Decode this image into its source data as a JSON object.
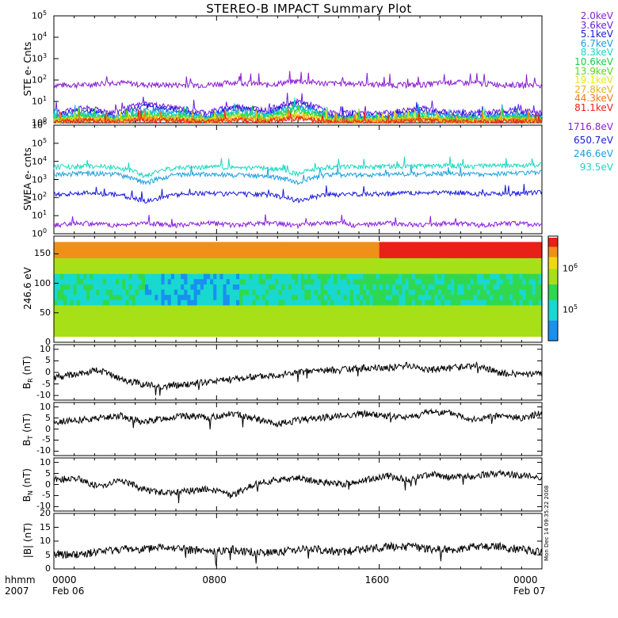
{
  "title": "STEREO-B IMPACT Summary Plot",
  "footer": {
    "corner_top": "hhmm",
    "corner_bottom": "2007",
    "x_ticks": [
      "0000",
      "0800",
      "1600",
      "0000"
    ],
    "x_dates": [
      "Feb 06",
      "",
      "",
      "Feb 07"
    ]
  },
  "timestamp": "Mon Dec 14 09:35:22 2008",
  "colors": {
    "ste": [
      "#8a1fd0",
      "#6a1fe0",
      "#1a1ad8",
      "#1aa0e0",
      "#18d6c8",
      "#18d048",
      "#5ad818",
      "#e8e818",
      "#f0b018",
      "#f07818",
      "#e82018"
    ],
    "swea": [
      "#8a1fe0",
      "#1a1ad8",
      "#1aa0e0",
      "#18d8c0"
    ]
  },
  "chart_data": [
    {
      "type": "line",
      "name": "ste",
      "ylabel": "STE e- Cnts",
      "yscale": "log",
      "ylim": [
        1,
        100000
      ],
      "y_ticks": [
        "10",
        "10",
        "10",
        "10",
        "10",
        "10"
      ],
      "y_tick_exponents": [
        "0",
        "1",
        "2",
        "3",
        "4",
        "5"
      ],
      "series": [
        {
          "name": "2.0keV",
          "values": [
            60,
            60,
            80,
            60,
            60,
            60,
            80,
            60,
            90,
            70,
            70,
            60,
            60,
            80,
            70,
            60,
            60
          ]
        },
        {
          "name": "3.6keV",
          "values": [
            3,
            5,
            3,
            8,
            5,
            3,
            6,
            4,
            10,
            3,
            3,
            3,
            5,
            3,
            3,
            4,
            3
          ]
        },
        {
          "name": "5.1keV",
          "values": [
            2,
            4,
            2,
            6,
            4,
            2,
            5,
            3,
            8,
            2,
            2,
            2,
            4,
            2,
            2,
            3,
            2
          ]
        },
        {
          "name": "6.7keV",
          "values": [
            1.8,
            3,
            1.8,
            4,
            3,
            1.8,
            4,
            2.5,
            6,
            1.8,
            1.8,
            1.8,
            3,
            1.8,
            1.8,
            2.5,
            1.8
          ]
        },
        {
          "name": "8.3keV",
          "values": [
            1.6,
            2.5,
            1.6,
            3,
            2.5,
            1.6,
            3,
            2,
            5,
            1.6,
            1.6,
            1.6,
            2.5,
            1.6,
            1.6,
            2,
            1.6
          ]
        },
        {
          "name": "10.6keV",
          "values": [
            1.5,
            2,
            1.5,
            2.5,
            2,
            1.5,
            2.5,
            1.8,
            4,
            1.5,
            1.5,
            1.5,
            2,
            1.5,
            1.5,
            1.8,
            1.5
          ]
        },
        {
          "name": "13.9keV",
          "values": [
            1.4,
            1.8,
            1.4,
            2,
            1.8,
            1.4,
            2,
            1.6,
            3,
            1.4,
            1.4,
            1.4,
            1.8,
            1.4,
            1.4,
            1.6,
            1.4
          ]
        },
        {
          "name": "19.1keV",
          "values": [
            1.3,
            1.6,
            1.3,
            1.8,
            1.6,
            1.3,
            1.8,
            1.5,
            2.5,
            1.3,
            1.3,
            1.3,
            1.6,
            1.3,
            1.3,
            1.5,
            1.3
          ]
        },
        {
          "name": "27.8keV",
          "values": [
            1.2,
            1.5,
            1.2,
            1.6,
            1.5,
            1.2,
            1.6,
            1.4,
            2,
            1.2,
            1.2,
            1.2,
            1.5,
            1.2,
            1.2,
            1.4,
            1.2
          ]
        },
        {
          "name": "44.3keV",
          "values": [
            1.15,
            1.4,
            1.15,
            1.5,
            1.4,
            1.15,
            1.5,
            1.3,
            1.8,
            1.15,
            1.15,
            1.15,
            1.4,
            1.15,
            1.15,
            1.3,
            1.15
          ]
        },
        {
          "name": "81.1keV",
          "values": [
            1.1,
            1.3,
            1.1,
            1.4,
            1.3,
            1.1,
            1.4,
            1.2,
            1.6,
            1.1,
            1.1,
            1.1,
            1.3,
            1.1,
            1.1,
            1.2,
            1.1
          ]
        }
      ]
    },
    {
      "type": "line",
      "name": "swea",
      "ylabel": "SWEA e- cnts",
      "yscale": "log",
      "ylim": [
        1,
        1000000
      ],
      "y_ticks": [
        "10",
        "10",
        "10",
        "10",
        "10",
        "10",
        "10"
      ],
      "y_tick_exponents": [
        "0",
        "1",
        "2",
        "3",
        "4",
        "5",
        "6"
      ],
      "series": [
        {
          "name": "1716.8eV",
          "values": [
            3,
            4,
            3,
            4,
            3,
            4,
            3,
            4,
            3,
            4,
            3,
            4,
            3,
            4,
            3,
            4,
            3
          ]
        },
        {
          "name": "650.7eV",
          "values": [
            150,
            180,
            150,
            60,
            150,
            180,
            160,
            150,
            70,
            150,
            160,
            170,
            180,
            200,
            160,
            170,
            200
          ]
        },
        {
          "name": "246.6eV",
          "values": [
            2000,
            2200,
            2000,
            600,
            1800,
            2000,
            1800,
            1600,
            700,
            1800,
            1800,
            2000,
            2000,
            2200,
            2000,
            2200,
            2500
          ]
        },
        {
          "name": "93.5eV",
          "values": [
            5000,
            5500,
            5000,
            1500,
            4500,
            5000,
            4500,
            4500,
            2000,
            5000,
            5000,
            5500,
            5500,
            6000,
            5500,
            6000,
            6500
          ]
        }
      ]
    },
    {
      "type": "heatmap",
      "name": "pitch",
      "ylabel": "246.6 eV",
      "ylim": [
        0,
        180
      ],
      "y_ticks": [
        "0",
        "50",
        "100",
        "150"
      ],
      "colorbar_ticks": [
        "10",
        "10"
      ],
      "colorbar_exponents": [
        "5",
        "6"
      ]
    },
    {
      "type": "line",
      "name": "br",
      "ylabel": "B",
      "ylabel_sub": "R",
      "ylabel_unit": " (nT)",
      "ylim": [
        -12,
        12
      ],
      "y_ticks": [
        "10",
        "5",
        "0",
        "-5",
        "-10"
      ],
      "values": [
        -2,
        -1,
        1,
        -3,
        -5,
        -6,
        -5,
        -4,
        -3,
        -2,
        -1,
        0,
        1,
        1,
        2,
        2,
        3,
        1,
        2,
        3,
        0,
        -1,
        -1
      ]
    },
    {
      "type": "line",
      "name": "bt",
      "ylabel": "B",
      "ylabel_sub": "T",
      "ylabel_unit": " (nT)",
      "ylim": [
        -12,
        12
      ],
      "y_ticks": [
        "10",
        "5",
        "0",
        "-5",
        "-10"
      ],
      "values": [
        3,
        4,
        5,
        6,
        3,
        5,
        6,
        5,
        7,
        5,
        2,
        4,
        5,
        6,
        7,
        6,
        5,
        8,
        7,
        4,
        6,
        5,
        7
      ]
    },
    {
      "type": "line",
      "name": "bn",
      "ylabel": "B",
      "ylabel_sub": "N",
      "ylabel_unit": " (nT)",
      "ylim": [
        -12,
        12
      ],
      "y_ticks": [
        "10",
        "5",
        "0",
        "-5",
        "-10"
      ],
      "values": [
        2,
        3,
        -1,
        2,
        -2,
        -4,
        -3,
        -2,
        -5,
        0,
        2,
        3,
        1,
        0,
        2,
        4,
        2,
        5,
        3,
        4,
        5,
        4,
        3
      ]
    },
    {
      "type": "line",
      "name": "bmag",
      "ylabel": "|B| (nT)",
      "ylim": [
        0,
        20
      ],
      "y_ticks": [
        "20",
        "15",
        "10",
        "5",
        "0"
      ],
      "values": [
        5,
        5,
        6,
        7,
        7,
        8,
        7,
        6,
        7,
        6,
        6,
        7,
        7,
        6,
        7,
        8,
        8,
        7,
        7,
        8,
        8,
        7,
        6
      ]
    }
  ]
}
